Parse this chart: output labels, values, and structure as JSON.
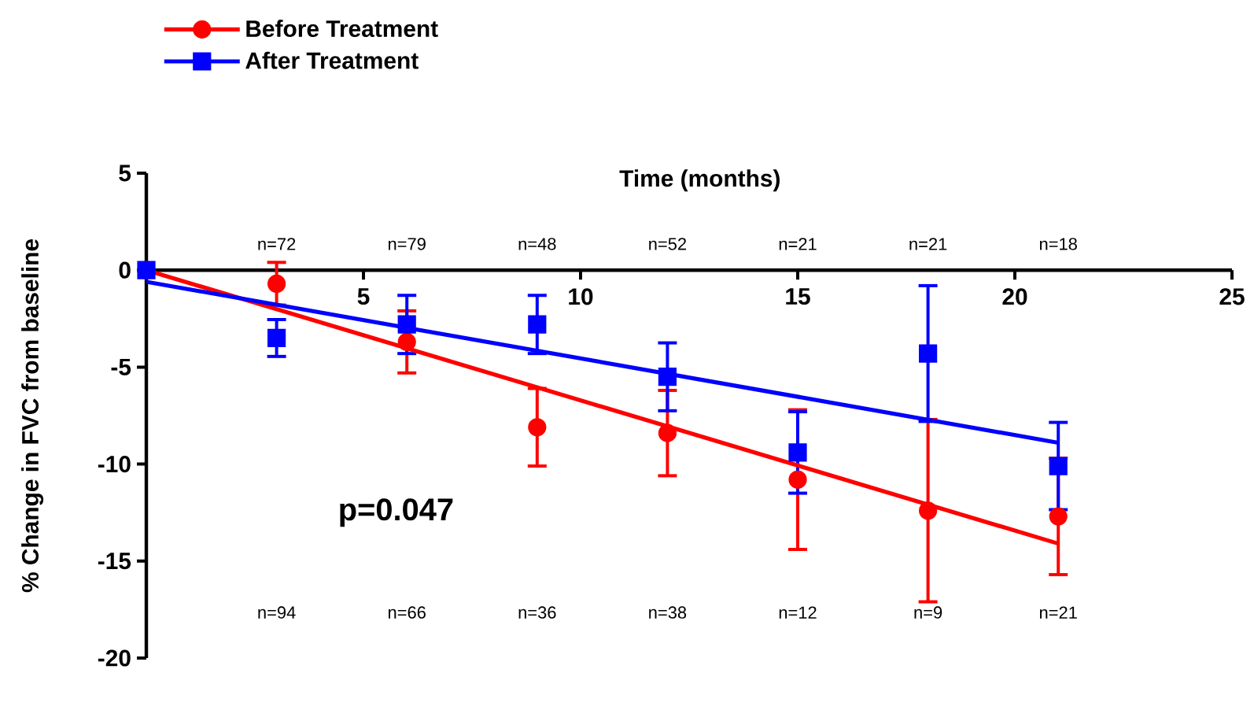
{
  "chart_data": {
    "type": "scatter",
    "xlabel": "Time (months)",
    "ylabel": "% Change in FVC from baseline",
    "xlim": [
      0,
      25
    ],
    "xticks": [
      5,
      10,
      15,
      20,
      25
    ],
    "ylim": [
      -20,
      5
    ],
    "yticks": [
      -20,
      -15,
      -10,
      -5,
      0,
      5
    ],
    "grid": false,
    "legend": "top left",
    "series": [
      {
        "name": "Before Treatment",
        "type": "scatter",
        "color": "#ff0000",
        "marker": "circle",
        "x": [
          0,
          3,
          6,
          9,
          12,
          15,
          18,
          21
        ],
        "values": [
          0,
          -0.7,
          -3.7,
          -8.1,
          -8.4,
          -10.8,
          -12.4,
          -12.7
        ],
        "errors": [
          null,
          1.1,
          1.6,
          2.0,
          2.2,
          3.6,
          4.7,
          3.0
        ]
      },
      {
        "name": "After Treatment",
        "type": "scatter",
        "color": "#0000ff",
        "marker": "square",
        "x": [
          0,
          3,
          6,
          9,
          12,
          15,
          18,
          21
        ],
        "values": [
          0,
          -3.5,
          -2.8,
          -2.8,
          -5.5,
          -9.4,
          -4.3,
          -10.1
        ],
        "errors": [
          null,
          0.95,
          1.5,
          1.5,
          1.75,
          2.1,
          3.5,
          2.25
        ]
      },
      {
        "type": "line",
        "color": "#ff0000",
        "x": [
          0,
          21
        ],
        "values": [
          0,
          -14.1
        ]
      },
      {
        "type": "line",
        "color": "#0000ff",
        "x": [
          0,
          21
        ],
        "values": [
          -0.6,
          -8.9
        ]
      }
    ],
    "annotations": [
      "p=0.047",
      "n=72",
      "n=79",
      "n=48",
      "n=52",
      "n=21",
      "n=21",
      "n=18",
      "n=94",
      "n=66",
      "n=36",
      "n=38",
      "n=12",
      "n=9",
      "n=21"
    ]
  }
}
